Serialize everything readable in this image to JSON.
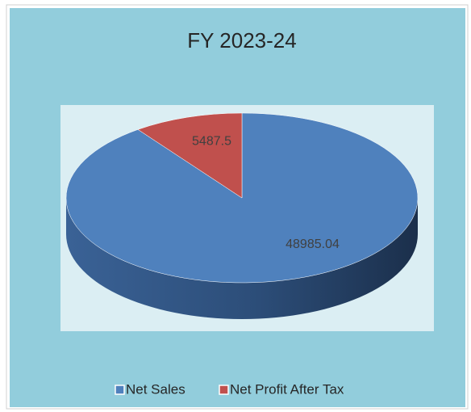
{
  "chart_data": {
    "type": "pie",
    "title": "FY 2023-24",
    "categories": [
      "Net Sales",
      "Net Profit After Tax"
    ],
    "values": [
      48985.04,
      5487.5
    ],
    "colors": [
      "#4F81BD",
      "#C0504D"
    ],
    "legend": "bottom"
  }
}
